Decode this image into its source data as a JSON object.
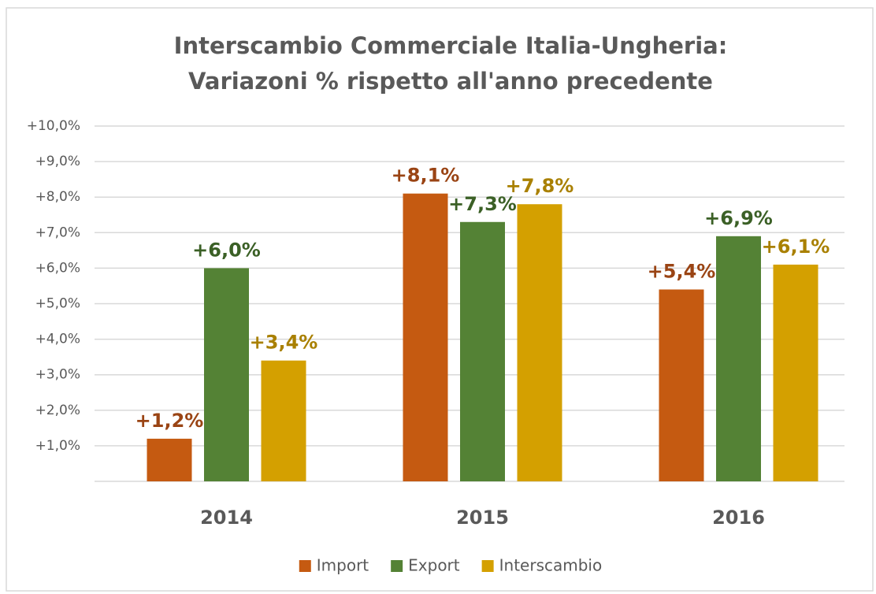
{
  "chart_data": {
    "type": "bar",
    "title": [
      "Interscambio Commerciale Italia-Ungheria:",
      "Variazoni % rispetto all'anno precedente"
    ],
    "categories": [
      "2014",
      "2015",
      "2016"
    ],
    "series": [
      {
        "name": "Import",
        "color": "#c55a11",
        "label_color": "#9a4414",
        "values": [
          1.2,
          8.1,
          5.4
        ],
        "value_labels": [
          "+1,2%",
          "+8,1%",
          "+5,4%"
        ]
      },
      {
        "name": "Export",
        "color": "#548235",
        "label_color": "#3b6026",
        "values": [
          6.0,
          7.3,
          6.9
        ],
        "value_labels": [
          "+6,0%",
          "+7,3%",
          "+6,9%"
        ]
      },
      {
        "name": "Interscambio",
        "color": "#d4a000",
        "label_color": "#a98000",
        "values": [
          3.4,
          7.8,
          6.1
        ],
        "value_labels": [
          "+3,4%",
          "+7,8%",
          "+6,1%"
        ]
      }
    ],
    "ylim": [
      0,
      10
    ],
    "yticks": [
      {
        "value": 1,
        "label": "+1,0%"
      },
      {
        "value": 2,
        "label": "+2,0%"
      },
      {
        "value": 3,
        "label": "+3,0%"
      },
      {
        "value": 4,
        "label": "+4,0%"
      },
      {
        "value": 5,
        "label": "+5,0%"
      },
      {
        "value": 6,
        "label": "+6,0%"
      },
      {
        "value": 7,
        "label": "+7,0%"
      },
      {
        "value": 8,
        "label": "+8,0%"
      },
      {
        "value": 9,
        "label": "+9,0%"
      },
      {
        "value": 10,
        "label": "+10,0%"
      }
    ],
    "grid": true,
    "legend": "bottom"
  }
}
